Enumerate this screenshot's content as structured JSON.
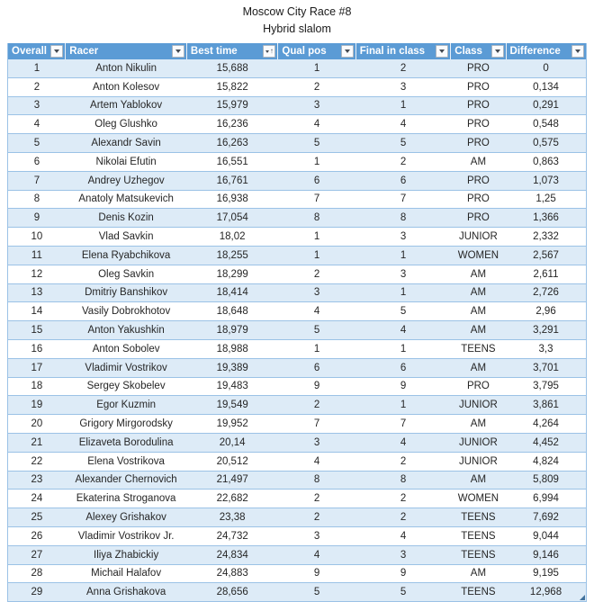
{
  "title": "Moscow City Race #8",
  "subtitle": "Hybrid slalom",
  "colors": {
    "header_bg": "#5B9BD5",
    "header_text": "#ffffff",
    "band_row": "#DDEBF7",
    "row_border": "#9BC2E6",
    "cell_text": "#262626",
    "resize_handle": "#41719C"
  },
  "table": {
    "columns": [
      {
        "key": "overall",
        "label": "Overall",
        "filter_icon": "filter-dropdown",
        "sorted": false
      },
      {
        "key": "racer",
        "label": "Racer",
        "filter_icon": "filter-dropdown",
        "sorted": false
      },
      {
        "key": "best-time",
        "label": "Best time",
        "filter_icon": "filter-dropdown-sort-ascending",
        "sorted": true
      },
      {
        "key": "qual-pos",
        "label": "Qual pos",
        "filter_icon": "filter-dropdown",
        "sorted": false
      },
      {
        "key": "final-in-class",
        "label": "Final in class",
        "filter_icon": "filter-dropdown",
        "sorted": false
      },
      {
        "key": "class",
        "label": "Class",
        "filter_icon": "filter-dropdown",
        "sorted": false
      },
      {
        "key": "difference",
        "label": "Difference",
        "filter_icon": "filter-dropdown",
        "sorted": false
      }
    ],
    "rows": [
      [
        "1",
        "Anton Nikulin",
        "15,688",
        "1",
        "2",
        "PRO",
        "0"
      ],
      [
        "2",
        "Anton Kolesov",
        "15,822",
        "2",
        "3",
        "PRO",
        "0,134"
      ],
      [
        "3",
        "Artem Yablokov",
        "15,979",
        "3",
        "1",
        "PRO",
        "0,291"
      ],
      [
        "4",
        "Oleg Glushko",
        "16,236",
        "4",
        "4",
        "PRO",
        "0,548"
      ],
      [
        "5",
        "Alexandr Savin",
        "16,263",
        "5",
        "5",
        "PRO",
        "0,575"
      ],
      [
        "6",
        "Nikolai Efutin",
        "16,551",
        "1",
        "2",
        "AM",
        "0,863"
      ],
      [
        "7",
        "Andrey Uzhegov",
        "16,761",
        "6",
        "6",
        "PRO",
        "1,073"
      ],
      [
        "8",
        "Anatoly Matsukevich",
        "16,938",
        "7",
        "7",
        "PRO",
        "1,25"
      ],
      [
        "9",
        "Denis Kozin",
        "17,054",
        "8",
        "8",
        "PRO",
        "1,366"
      ],
      [
        "10",
        "Vlad Savkin",
        "18,02",
        "1",
        "3",
        "JUNIOR",
        "2,332"
      ],
      [
        "11",
        "Elena Ryabchikova",
        "18,255",
        "1",
        "1",
        "WOMEN",
        "2,567"
      ],
      [
        "12",
        "Oleg Savkin",
        "18,299",
        "2",
        "3",
        "AM",
        "2,611"
      ],
      [
        "13",
        "Dmitriy Banshikov",
        "18,414",
        "3",
        "1",
        "AM",
        "2,726"
      ],
      [
        "14",
        "Vasily Dobrokhotov",
        "18,648",
        "4",
        "5",
        "AM",
        "2,96"
      ],
      [
        "15",
        "Anton Yakushkin",
        "18,979",
        "5",
        "4",
        "AM",
        "3,291"
      ],
      [
        "16",
        "Anton Sobolev",
        "18,988",
        "1",
        "1",
        "TEENS",
        "3,3"
      ],
      [
        "17",
        "Vladimir Vostrikov",
        "19,389",
        "6",
        "6",
        "AM",
        "3,701"
      ],
      [
        "18",
        "Sergey Skobelev",
        "19,483",
        "9",
        "9",
        "PRO",
        "3,795"
      ],
      [
        "19",
        "Egor Kuzmin",
        "19,549",
        "2",
        "1",
        "JUNIOR",
        "3,861"
      ],
      [
        "20",
        "Grigory Mirgorodsky",
        "19,952",
        "7",
        "7",
        "AM",
        "4,264"
      ],
      [
        "21",
        "Elizaveta Borodulina",
        "20,14",
        "3",
        "4",
        "JUNIOR",
        "4,452"
      ],
      [
        "22",
        "Elena Vostrikova",
        "20,512",
        "4",
        "2",
        "JUNIOR",
        "4,824"
      ],
      [
        "23",
        "Alexander Chernovich",
        "21,497",
        "8",
        "8",
        "AM",
        "5,809"
      ],
      [
        "24",
        "Ekaterina Stroganova",
        "22,682",
        "2",
        "2",
        "WOMEN",
        "6,994"
      ],
      [
        "25",
        "Alexey Grishakov",
        "23,38",
        "2",
        "2",
        "TEENS",
        "7,692"
      ],
      [
        "26",
        "Vladimir Vostrikov Jr.",
        "24,732",
        "3",
        "4",
        "TEENS",
        "9,044"
      ],
      [
        "27",
        "Iliya Zhabickiy",
        "24,834",
        "4",
        "3",
        "TEENS",
        "9,146"
      ],
      [
        "28",
        "Michail Halafov",
        "24,883",
        "9",
        "9",
        "AM",
        "9,195"
      ],
      [
        "29",
        "Anna Grishakova",
        "28,656",
        "5",
        "5",
        "TEENS",
        "12,968"
      ]
    ]
  }
}
